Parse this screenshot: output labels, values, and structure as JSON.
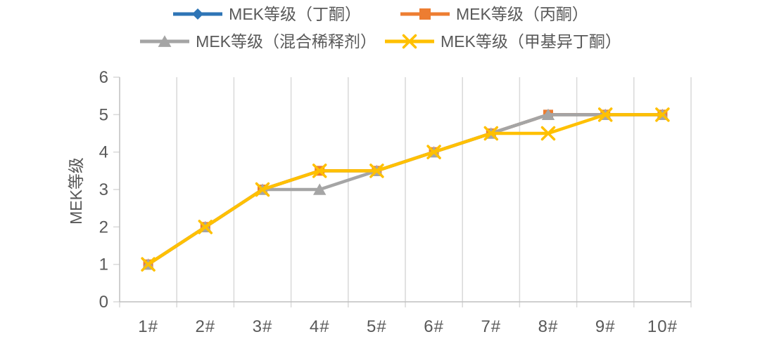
{
  "chart_data": {
    "type": "line",
    "title": "",
    "xlabel": "",
    "ylabel": "MEK等级",
    "ylim": [
      0,
      6
    ],
    "ytick_interval": 1,
    "yticks": [
      "0",
      "1",
      "2",
      "3",
      "4",
      "5",
      "6"
    ],
    "categories": [
      "1#",
      "2#",
      "3#",
      "4#",
      "5#",
      "6#",
      "7#",
      "8#",
      "9#",
      "10#"
    ],
    "series": [
      {
        "name": "MEK等级（丁酮）",
        "marker": "diamond",
        "color": "#2E75B6",
        "values": [
          1,
          2,
          3,
          3.5,
          3.5,
          4,
          4.5,
          5,
          5,
          5
        ]
      },
      {
        "name": "MEK等级（丙酮）",
        "marker": "square",
        "color": "#ED7D31",
        "values": [
          1,
          2,
          3,
          3.5,
          3.5,
          4,
          4.5,
          5,
          5,
          5
        ]
      },
      {
        "name": "MEK等级（混合稀释剂）",
        "marker": "triangle",
        "color": "#A5A5A5",
        "values": [
          1,
          2,
          3,
          3,
          3.5,
          4,
          4.5,
          5,
          5,
          5
        ]
      },
      {
        "name": "MEK等级（甲基异丁酮）",
        "marker": "x",
        "color": "#FFC000",
        "values": [
          1,
          2,
          3,
          3.5,
          3.5,
          4,
          4.5,
          4.5,
          5,
          5
        ]
      }
    ],
    "legend_position": "top",
    "grid": "vertical-only",
    "colors": {
      "axis_line": "#BFBFBF",
      "gridline": "#D9D9D9",
      "tick_text": "#595959",
      "legend_text": "#595959",
      "background": "#FFFFFF"
    }
  }
}
